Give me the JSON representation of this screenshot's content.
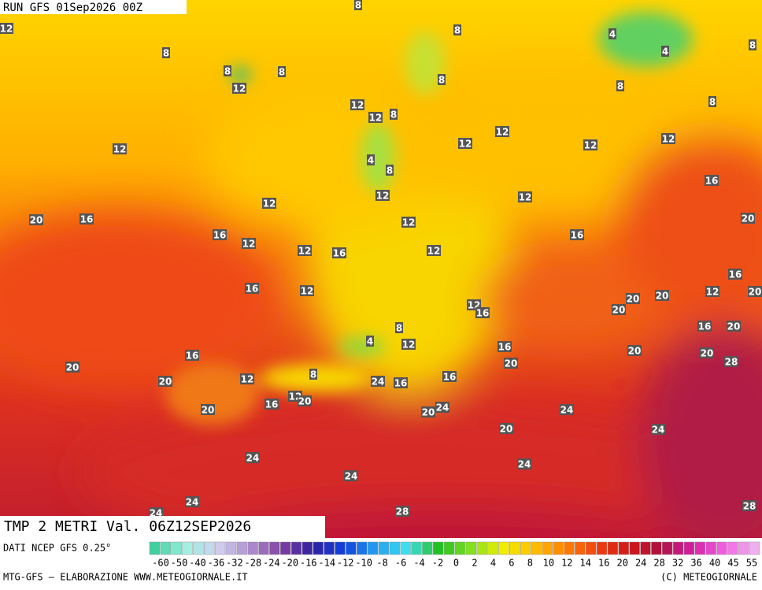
{
  "header": {
    "run": "RUN GFS 01Sep2026 00Z",
    "title": "TMP 2 METRI Val. 06Z12SEP2026"
  },
  "labels": [
    8,
    12,
    8,
    8,
    8,
    12,
    8,
    4,
    4,
    8,
    8,
    8,
    8,
    12,
    12,
    8,
    12,
    12,
    12,
    12,
    12,
    4,
    8,
    16,
    12,
    12,
    12,
    20,
    16,
    12,
    20,
    16,
    16,
    12,
    12,
    16,
    12,
    16,
    12,
    16,
    12,
    20,
    20,
    20,
    12,
    16,
    20,
    8,
    16,
    20,
    4,
    12,
    16,
    20,
    20,
    20,
    16,
    20,
    28,
    8,
    12,
    16,
    20,
    24,
    16,
    12,
    20,
    16,
    20,
    24,
    20,
    24,
    20,
    24,
    24,
    24,
    24,
    24,
    28,
    24,
    28
  ],
  "footer": {
    "source": "DATI NCEP GFS 0.25°",
    "credit": "MTG-GFS – ELABORAZIONE WWW.METEOGIORNALE.IT",
    "copyright": "(C) METEOGIORNALE"
  },
  "scale": [
    -60,
    -50,
    -40,
    -36,
    -32,
    -28,
    -24,
    -20,
    -16,
    -14,
    -12,
    -10,
    -8,
    -6,
    -4,
    -2,
    0,
    2,
    4,
    6,
    8,
    10,
    12,
    14,
    16,
    20,
    24,
    28,
    32,
    36,
    40,
    45,
    55
  ]
}
